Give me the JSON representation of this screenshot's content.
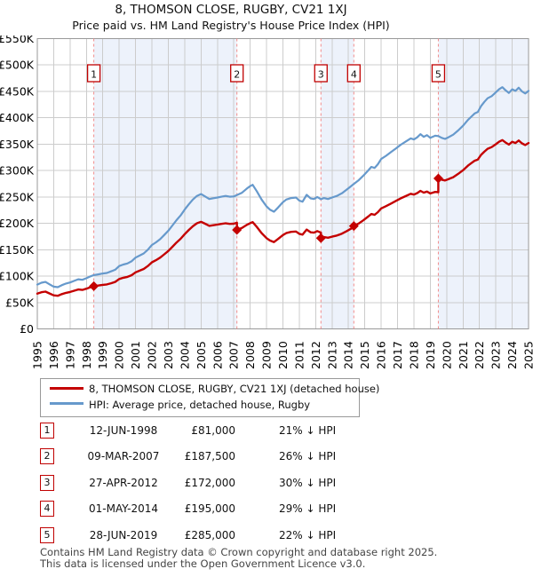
{
  "header": {
    "title": "8, THOMSON CLOSE, RUGBY, CV21 1XJ",
    "subtitle": "Price paid vs. HM Land Registry's House Price Index (HPI)"
  },
  "chart_data": {
    "type": "line",
    "x_range": [
      1995,
      2025
    ],
    "y_range": [
      0,
      550
    ],
    "y_unit": "GBP thousands",
    "grid": true,
    "grid_color": "#cccccc",
    "border_color": "#999999",
    "band_color": "#edf2fb",
    "sale_line_color": "#f28b8b",
    "x_ticks": [
      1995,
      1996,
      1997,
      1998,
      1999,
      2000,
      2001,
      2002,
      2003,
      2004,
      2005,
      2006,
      2007,
      2008,
      2009,
      2010,
      2011,
      2012,
      2013,
      2014,
      2015,
      2016,
      2017,
      2018,
      2019,
      2020,
      2021,
      2022,
      2023,
      2024,
      2025
    ],
    "y_ticks": [
      {
        "v": 0,
        "label": "£0"
      },
      {
        "v": 50,
        "label": "£50K"
      },
      {
        "v": 100,
        "label": "£100K"
      },
      {
        "v": 150,
        "label": "£150K"
      },
      {
        "v": 200,
        "label": "£200K"
      },
      {
        "v": 250,
        "label": "£250K"
      },
      {
        "v": 300,
        "label": "£300K"
      },
      {
        "v": 350,
        "label": "£350K"
      },
      {
        "v": 400,
        "label": "£400K"
      },
      {
        "v": 450,
        "label": "£450K"
      },
      {
        "v": 500,
        "label": "£500K"
      },
      {
        "v": 550,
        "label": "£550K"
      }
    ],
    "shaded_bands": [
      [
        1998.45,
        2007.19
      ],
      [
        2012.32,
        2014.33
      ],
      [
        2019.49,
        2025
      ]
    ],
    "sales": [
      {
        "label": "1",
        "t": 1998.45,
        "price_k": 81,
        "date": "12-JUN-1998"
      },
      {
        "label": "2",
        "t": 2007.19,
        "price_k": 187.5,
        "date": "09-MAR-2007"
      },
      {
        "label": "3",
        "t": 2012.32,
        "price_k": 172,
        "date": "27-APR-2012"
      },
      {
        "label": "4",
        "t": 2014.33,
        "price_k": 195,
        "date": "01-MAY-2014"
      },
      {
        "label": "5",
        "t": 2019.49,
        "price_k": 285,
        "date": "28-JUN-2019"
      }
    ],
    "series": [
      {
        "id": "price-paid",
        "name": "8, THOMSON CLOSE, RUGBY, CV21 1XJ (detached house)",
        "color": "#c40000",
        "width": 2.4,
        "points": [
          [
            1995,
            66.7
          ],
          [
            1995.25,
            69.5
          ],
          [
            1995.5,
            70.7
          ],
          [
            1995.75,
            67.1
          ],
          [
            1996,
            63.5
          ],
          [
            1996.25,
            62.7
          ],
          [
            1996.5,
            65.9
          ],
          [
            1996.75,
            68.3
          ],
          [
            1997,
            69.9
          ],
          [
            1997.25,
            72.3
          ],
          [
            1997.5,
            74.6
          ],
          [
            1997.75,
            73.8
          ],
          [
            1998,
            76.2
          ],
          [
            1998.25,
            79
          ],
          [
            1998.45,
            81
          ],
          [
            1998.75,
            82.2
          ],
          [
            1999,
            83.4
          ],
          [
            1999.25,
            84.2
          ],
          [
            1999.5,
            86.5
          ],
          [
            1999.75,
            88.9
          ],
          [
            2000,
            94.5
          ],
          [
            2000.25,
            96.9
          ],
          [
            2000.5,
            98.5
          ],
          [
            2000.75,
            101.6
          ],
          [
            2001,
            107.2
          ],
          [
            2001.25,
            110.4
          ],
          [
            2001.5,
            113.5
          ],
          [
            2001.75,
            119.1
          ],
          [
            2002,
            126.2
          ],
          [
            2002.25,
            130.2
          ],
          [
            2002.5,
            135
          ],
          [
            2002.75,
            141.3
          ],
          [
            2003,
            147.7
          ],
          [
            2003.25,
            155.6
          ],
          [
            2003.5,
            163.6
          ],
          [
            2003.75,
            170.7
          ],
          [
            2004,
            179.4
          ],
          [
            2004.25,
            187.4
          ],
          [
            2004.5,
            194.5
          ],
          [
            2004.75,
            200.1
          ],
          [
            2005,
            202.9
          ],
          [
            2005.25,
            199.3
          ],
          [
            2005.5,
            195.3
          ],
          [
            2005.75,
            196.5
          ],
          [
            2006,
            197.7
          ],
          [
            2006.25,
            198.9
          ],
          [
            2006.5,
            200.1
          ],
          [
            2006.75,
            198.9
          ],
          [
            2007,
            199.3
          ],
          [
            2007.19,
            201.2
          ],
          [
            2007.19,
            187.5
          ],
          [
            2007.5,
            191.2
          ],
          [
            2007.8,
            197.1
          ],
          [
            2008,
            200.4
          ],
          [
            2008.15,
            202.3
          ],
          [
            2008.4,
            193.4
          ],
          [
            2008.7,
            181.5
          ],
          [
            2009,
            171.9
          ],
          [
            2009.2,
            167.5
          ],
          [
            2009.45,
            164.5
          ],
          [
            2009.7,
            170.4
          ],
          [
            2010,
            177.8
          ],
          [
            2010.2,
            181.5
          ],
          [
            2010.5,
            183.8
          ],
          [
            2010.8,
            184.5
          ],
          [
            2011,
            180.1
          ],
          [
            2011.2,
            178.6
          ],
          [
            2011.45,
            188.2
          ],
          [
            2011.7,
            183
          ],
          [
            2011.9,
            182.3
          ],
          [
            2012.1,
            185.3
          ],
          [
            2012.32,
            182.1
          ],
          [
            2012.32,
            172
          ],
          [
            2012.5,
            174.1
          ],
          [
            2012.75,
            172.7
          ],
          [
            2013,
            174.8
          ],
          [
            2013.3,
            176.9
          ],
          [
            2013.6,
            180.4
          ],
          [
            2013.9,
            185.3
          ],
          [
            2014.1,
            188.8
          ],
          [
            2014.33,
            192.8
          ],
          [
            2014.33,
            195
          ],
          [
            2014.6,
            199.2
          ],
          [
            2014.9,
            205.6
          ],
          [
            2015.2,
            212.7
          ],
          [
            2015.4,
            217.7
          ],
          [
            2015.6,
            216.2
          ],
          [
            2015.8,
            221.2
          ],
          [
            2016,
            228.3
          ],
          [
            2016.3,
            232.6
          ],
          [
            2016.6,
            237.5
          ],
          [
            2016.9,
            242.5
          ],
          [
            2017.2,
            247.4
          ],
          [
            2017.5,
            251.7
          ],
          [
            2017.8,
            256
          ],
          [
            2018,
            254.5
          ],
          [
            2018.2,
            257.4
          ],
          [
            2018.4,
            261.6
          ],
          [
            2018.6,
            258.1
          ],
          [
            2018.8,
            260.2
          ],
          [
            2019,
            256.7
          ],
          [
            2019.3,
            259.5
          ],
          [
            2019.49,
            259.1
          ],
          [
            2019.49,
            285
          ],
          [
            2019.7,
            282.7
          ],
          [
            2019.9,
            281.2
          ],
          [
            2020.1,
            283.5
          ],
          [
            2020.4,
            287.4
          ],
          [
            2020.7,
            293.7
          ],
          [
            2021,
            300.7
          ],
          [
            2021.3,
            309.3
          ],
          [
            2021.5,
            314
          ],
          [
            2021.7,
            318.6
          ],
          [
            2021.9,
            321
          ],
          [
            2022.1,
            329.6
          ],
          [
            2022.3,
            335.8
          ],
          [
            2022.5,
            341.3
          ],
          [
            2022.75,
            344.4
          ],
          [
            2023,
            349.9
          ],
          [
            2023.2,
            354.6
          ],
          [
            2023.4,
            357.7
          ],
          [
            2023.6,
            353
          ],
          [
            2023.8,
            349.1
          ],
          [
            2024,
            354.6
          ],
          [
            2024.2,
            352.2
          ],
          [
            2024.4,
            356.9
          ],
          [
            2024.6,
            351.5
          ],
          [
            2024.8,
            348.3
          ],
          [
            2025,
            352.2
          ]
        ]
      },
      {
        "id": "hpi",
        "name": "HPI: Average price, detached house, Rugby",
        "color": "#6699cc",
        "width": 2.2,
        "points": [
          [
            1995,
            84
          ],
          [
            1995.25,
            87.5
          ],
          [
            1995.5,
            89
          ],
          [
            1995.75,
            84.5
          ],
          [
            1996,
            80
          ],
          [
            1996.25,
            79
          ],
          [
            1996.5,
            83
          ],
          [
            1996.75,
            86
          ],
          [
            1997,
            88
          ],
          [
            1997.25,
            91
          ],
          [
            1997.5,
            94
          ],
          [
            1997.75,
            93
          ],
          [
            1998,
            96
          ],
          [
            1998.25,
            99.5
          ],
          [
            1998.45,
            102
          ],
          [
            1998.75,
            103.5
          ],
          [
            1999,
            105
          ],
          [
            1999.25,
            106
          ],
          [
            1999.5,
            109
          ],
          [
            1999.75,
            112
          ],
          [
            2000,
            119
          ],
          [
            2000.25,
            122
          ],
          [
            2000.5,
            124
          ],
          [
            2000.75,
            128
          ],
          [
            2001,
            135
          ],
          [
            2001.25,
            139
          ],
          [
            2001.5,
            143
          ],
          [
            2001.75,
            150
          ],
          [
            2002,
            159
          ],
          [
            2002.25,
            164
          ],
          [
            2002.5,
            170
          ],
          [
            2002.75,
            178
          ],
          [
            2003,
            186
          ],
          [
            2003.25,
            196
          ],
          [
            2003.5,
            206
          ],
          [
            2003.75,
            215
          ],
          [
            2004,
            226
          ],
          [
            2004.25,
            236
          ],
          [
            2004.5,
            245
          ],
          [
            2004.75,
            252
          ],
          [
            2005,
            255.5
          ],
          [
            2005.25,
            251
          ],
          [
            2005.5,
            246
          ],
          [
            2005.75,
            247.5
          ],
          [
            2006,
            249
          ],
          [
            2006.25,
            250.5
          ],
          [
            2006.5,
            252
          ],
          [
            2006.75,
            250.5
          ],
          [
            2007,
            251
          ],
          [
            2007.19,
            253.4
          ],
          [
            2007.5,
            258
          ],
          [
            2007.8,
            266
          ],
          [
            2008,
            270.5
          ],
          [
            2008.15,
            273
          ],
          [
            2008.4,
            261
          ],
          [
            2008.7,
            245
          ],
          [
            2009,
            232
          ],
          [
            2009.2,
            226
          ],
          [
            2009.45,
            222
          ],
          [
            2009.7,
            230
          ],
          [
            2010,
            240
          ],
          [
            2010.2,
            245
          ],
          [
            2010.5,
            248
          ],
          [
            2010.8,
            249
          ],
          [
            2011,
            243
          ],
          [
            2011.2,
            241
          ],
          [
            2011.45,
            254
          ],
          [
            2011.7,
            247
          ],
          [
            2011.9,
            246
          ],
          [
            2012.1,
            250
          ],
          [
            2012.32,
            245.7
          ],
          [
            2012.5,
            248
          ],
          [
            2012.75,
            246
          ],
          [
            2013,
            249
          ],
          [
            2013.3,
            252
          ],
          [
            2013.6,
            257
          ],
          [
            2013.9,
            264
          ],
          [
            2014.1,
            269
          ],
          [
            2014.33,
            274.6
          ],
          [
            2014.6,
            281
          ],
          [
            2014.9,
            290
          ],
          [
            2015.2,
            300
          ],
          [
            2015.4,
            307
          ],
          [
            2015.6,
            305
          ],
          [
            2015.8,
            312
          ],
          [
            2016,
            322
          ],
          [
            2016.3,
            328
          ],
          [
            2016.6,
            335
          ],
          [
            2016.9,
            342
          ],
          [
            2017.2,
            349
          ],
          [
            2017.5,
            355
          ],
          [
            2017.8,
            361
          ],
          [
            2018,
            359
          ],
          [
            2018.2,
            363
          ],
          [
            2018.4,
            369
          ],
          [
            2018.6,
            364
          ],
          [
            2018.8,
            367
          ],
          [
            2019,
            362
          ],
          [
            2019.3,
            366
          ],
          [
            2019.49,
            365.4
          ],
          [
            2019.7,
            362
          ],
          [
            2019.9,
            360
          ],
          [
            2020.1,
            363
          ],
          [
            2020.4,
            368
          ],
          [
            2020.7,
            376
          ],
          [
            2021,
            385
          ],
          [
            2021.3,
            396
          ],
          [
            2021.5,
            402
          ],
          [
            2021.7,
            408
          ],
          [
            2021.9,
            411
          ],
          [
            2022.1,
            422
          ],
          [
            2022.3,
            430
          ],
          [
            2022.5,
            437
          ],
          [
            2022.75,
            441
          ],
          [
            2023,
            448
          ],
          [
            2023.2,
            454
          ],
          [
            2023.4,
            458
          ],
          [
            2023.6,
            452
          ],
          [
            2023.8,
            447
          ],
          [
            2024,
            454
          ],
          [
            2024.2,
            451
          ],
          [
            2024.4,
            457
          ],
          [
            2024.6,
            450
          ],
          [
            2024.8,
            446
          ],
          [
            2025,
            451
          ]
        ]
      }
    ]
  },
  "legend": {
    "items": [
      {
        "label": "8, THOMSON CLOSE, RUGBY, CV21 1XJ (detached house)",
        "color": "#c40000"
      },
      {
        "label": "HPI: Average price, detached house, Rugby",
        "color": "#6699cc"
      }
    ]
  },
  "table": {
    "rows": [
      {
        "num": "1",
        "date": "12-JUN-1998",
        "price": "£81,000",
        "delta": "21% ↓ HPI"
      },
      {
        "num": "2",
        "date": "09-MAR-2007",
        "price": "£187,500",
        "delta": "26% ↓ HPI"
      },
      {
        "num": "3",
        "date": "27-APR-2012",
        "price": "£172,000",
        "delta": "30% ↓ HPI"
      },
      {
        "num": "4",
        "date": "01-MAY-2014",
        "price": "£195,000",
        "delta": "29% ↓ HPI"
      },
      {
        "num": "5",
        "date": "28-JUN-2019",
        "price": "£285,000",
        "delta": "22% ↓ HPI"
      }
    ]
  },
  "footer": {
    "line1": "Contains HM Land Registry data © Crown copyright and database right 2025.",
    "line2": "This data is licensed under the Open Government Licence v3.0."
  }
}
